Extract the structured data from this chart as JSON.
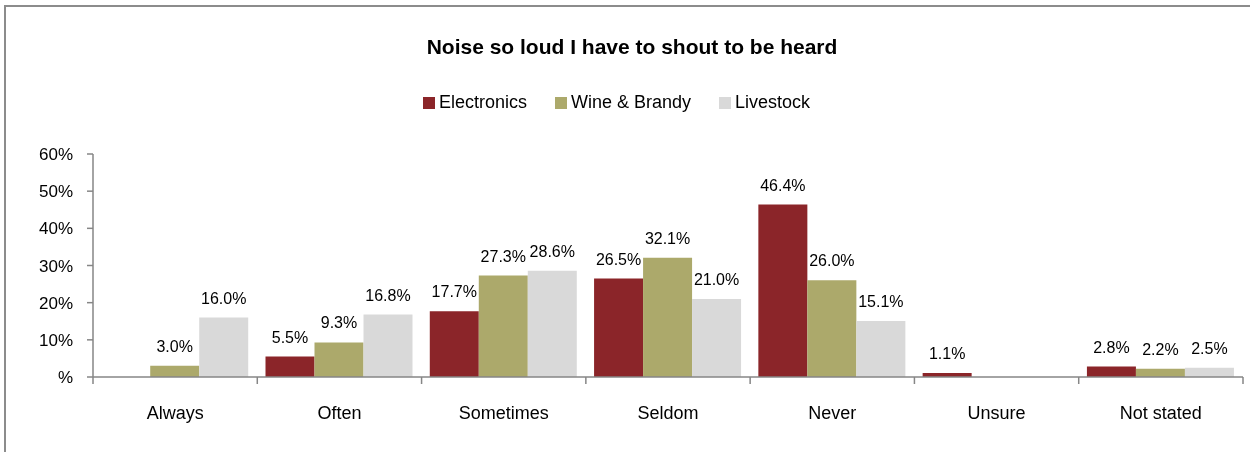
{
  "chart_data": {
    "type": "bar",
    "title": "Noise so loud I have to shout to be heard",
    "categories": [
      "Always",
      "Often",
      "Sometimes",
      "Seldom",
      "Never",
      "Unsure",
      "Not stated"
    ],
    "series": [
      {
        "name": "Electronics",
        "color": "#8b2529",
        "values": [
          null,
          5.5,
          17.7,
          26.5,
          46.4,
          1.1,
          2.8
        ],
        "value_labels": [
          null,
          "5.5%",
          "17.7%",
          "26.5%",
          "46.4%",
          "1.1%",
          "2.8%"
        ]
      },
      {
        "name": "Wine & Brandy",
        "color": "#aca96b",
        "values": [
          3.0,
          9.3,
          27.3,
          32.1,
          26.0,
          null,
          2.2
        ],
        "value_labels": [
          "3.0%",
          "9.3%",
          "27.3%",
          "32.1%",
          "26.0%",
          null,
          "2.2%"
        ]
      },
      {
        "name": "Livestock",
        "color": "#d9d9d9",
        "values": [
          16.0,
          16.8,
          28.6,
          21.0,
          15.1,
          null,
          2.5
        ],
        "value_labels": [
          "16.0%",
          "16.8%",
          "28.6%",
          "21.0%",
          "15.1%",
          null,
          "2.5%"
        ]
      }
    ],
    "ylim": [
      0,
      60
    ],
    "yticks": [
      {
        "value": 0,
        "label": "%"
      },
      {
        "value": 10,
        "label": "10%"
      },
      {
        "value": 20,
        "label": "20%"
      },
      {
        "value": 30,
        "label": "30%"
      },
      {
        "value": 40,
        "label": "40%"
      },
      {
        "value": 50,
        "label": "50%"
      },
      {
        "value": 60,
        "label": "60%"
      }
    ],
    "legend": "top"
  }
}
